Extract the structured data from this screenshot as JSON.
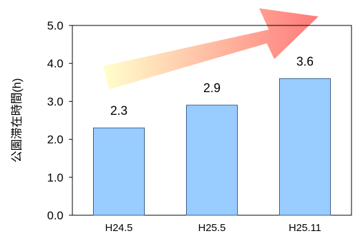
{
  "chart_data": {
    "type": "bar",
    "categories": [
      "H24.5",
      "H25.5",
      "H25.11"
    ],
    "values": [
      2.3,
      2.9,
      3.6
    ],
    "data_labels": [
      "2.3",
      "2.9",
      "3.6"
    ],
    "ylabel": "公園滞在時間(h)",
    "ylim": [
      0,
      5
    ],
    "yticks": [
      "0.0",
      "1.0",
      "2.0",
      "3.0",
      "4.0",
      "5.0"
    ],
    "grid": false,
    "legend": "none",
    "annotation": "gradient arrow (increasing trend)",
    "colors": {
      "bar_fill": "#99CCFF",
      "bar_stroke": "#3a5f8a",
      "arrow_start": "#FFFFCC",
      "arrow_end": "#FF7A7A",
      "axis": "#000000"
    }
  }
}
